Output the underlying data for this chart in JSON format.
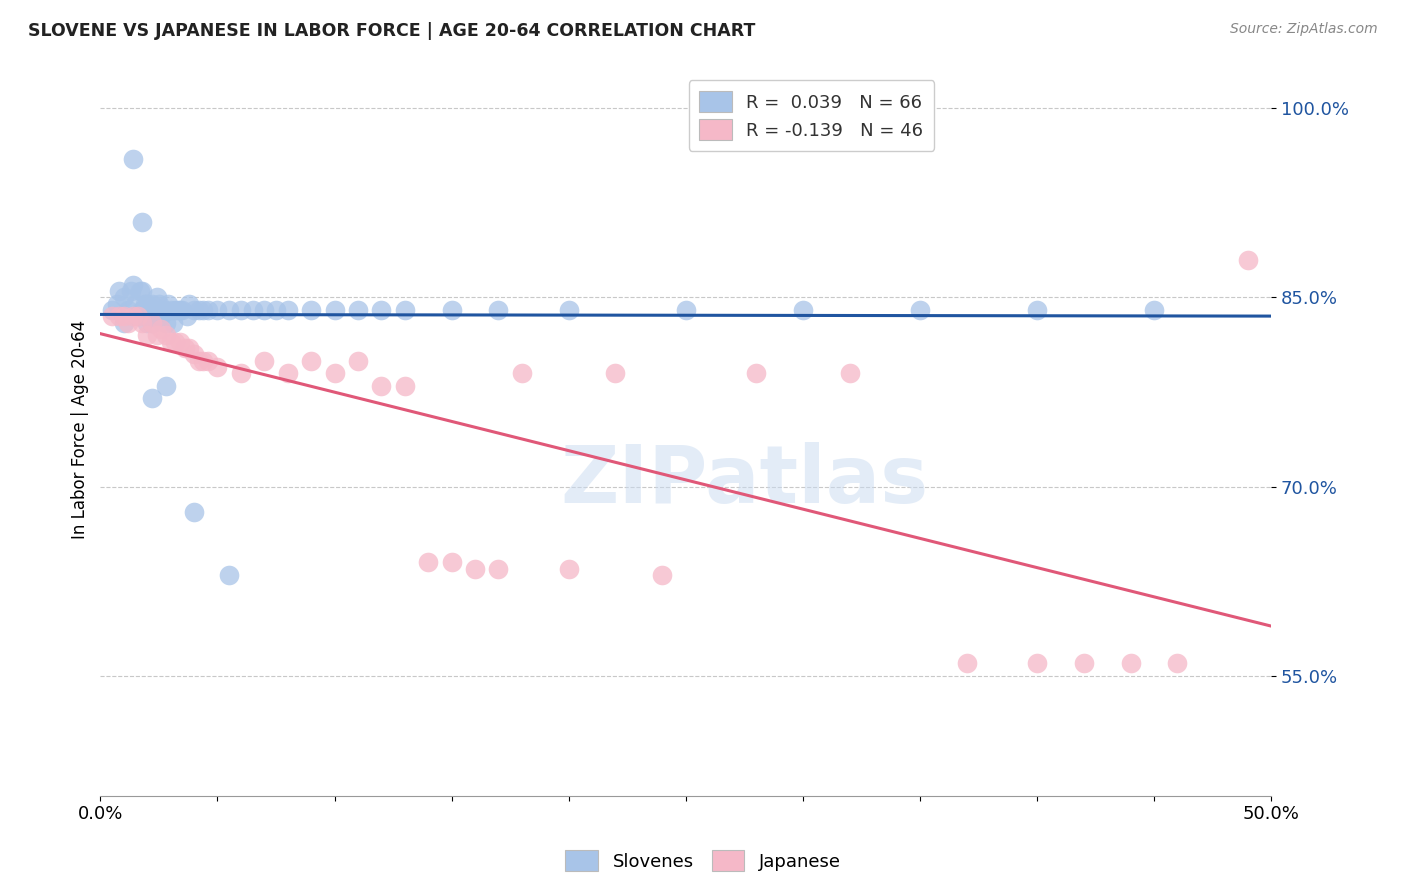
{
  "title": "SLOVENE VS JAPANESE IN LABOR FORCE | AGE 20-64 CORRELATION CHART",
  "source": "Source: ZipAtlas.com",
  "ylabel": "In Labor Force | Age 20-64",
  "yticks_labels": [
    "100.0%",
    "85.0%",
    "70.0%",
    "55.0%"
  ],
  "ytick_vals": [
    1.0,
    0.85,
    0.7,
    0.55
  ],
  "xmin": 0.0,
  "xmax": 0.5,
  "ymin": 0.455,
  "ymax": 1.035,
  "slovene_color": "#a8c4e8",
  "japanese_color": "#f5b8c8",
  "trendline_slovene_color": "#2055a0",
  "trendline_japanese_color": "#e05878",
  "background_color": "#ffffff",
  "watermark": "ZIPatlas",
  "slovene_x": [
    0.005,
    0.007,
    0.008,
    0.01,
    0.01,
    0.012,
    0.013,
    0.014,
    0.015,
    0.016,
    0.017,
    0.018,
    0.018,
    0.019,
    0.02,
    0.02,
    0.021,
    0.022,
    0.022,
    0.023,
    0.024,
    0.024,
    0.025,
    0.025,
    0.026,
    0.027,
    0.028,
    0.029,
    0.03,
    0.031,
    0.032,
    0.033,
    0.034,
    0.035,
    0.037,
    0.038,
    0.04,
    0.042,
    0.044,
    0.046,
    0.05,
    0.055,
    0.06,
    0.065,
    0.07,
    0.075,
    0.08,
    0.09,
    0.1,
    0.11,
    0.12,
    0.13,
    0.15,
    0.17,
    0.2,
    0.25,
    0.3,
    0.35,
    0.4,
    0.45,
    0.055,
    0.04,
    0.028,
    0.022,
    0.018,
    0.014
  ],
  "slovene_y": [
    0.84,
    0.845,
    0.855,
    0.83,
    0.85,
    0.84,
    0.855,
    0.86,
    0.845,
    0.835,
    0.855,
    0.84,
    0.855,
    0.845,
    0.83,
    0.845,
    0.84,
    0.83,
    0.845,
    0.84,
    0.84,
    0.85,
    0.835,
    0.845,
    0.835,
    0.84,
    0.83,
    0.845,
    0.84,
    0.83,
    0.84,
    0.84,
    0.84,
    0.84,
    0.835,
    0.845,
    0.84,
    0.84,
    0.84,
    0.84,
    0.84,
    0.84,
    0.84,
    0.84,
    0.84,
    0.84,
    0.84,
    0.84,
    0.84,
    0.84,
    0.84,
    0.84,
    0.84,
    0.84,
    0.84,
    0.84,
    0.84,
    0.84,
    0.84,
    0.84,
    0.63,
    0.68,
    0.78,
    0.77,
    0.91,
    0.96
  ],
  "japanese_x": [
    0.005,
    0.008,
    0.01,
    0.012,
    0.014,
    0.016,
    0.018,
    0.02,
    0.022,
    0.024,
    0.026,
    0.028,
    0.03,
    0.032,
    0.034,
    0.036,
    0.038,
    0.04,
    0.042,
    0.044,
    0.046,
    0.05,
    0.06,
    0.07,
    0.08,
    0.09,
    0.1,
    0.11,
    0.12,
    0.13,
    0.14,
    0.15,
    0.16,
    0.17,
    0.18,
    0.2,
    0.22,
    0.24,
    0.28,
    0.32,
    0.37,
    0.4,
    0.42,
    0.44,
    0.46,
    0.49
  ],
  "japanese_y": [
    0.835,
    0.835,
    0.835,
    0.83,
    0.835,
    0.835,
    0.83,
    0.82,
    0.83,
    0.82,
    0.825,
    0.82,
    0.815,
    0.815,
    0.815,
    0.81,
    0.81,
    0.805,
    0.8,
    0.8,
    0.8,
    0.795,
    0.79,
    0.8,
    0.79,
    0.8,
    0.79,
    0.8,
    0.78,
    0.78,
    0.64,
    0.64,
    0.635,
    0.635,
    0.79,
    0.635,
    0.79,
    0.63,
    0.79,
    0.79,
    0.56,
    0.56,
    0.56,
    0.56,
    0.56,
    0.88
  ]
}
